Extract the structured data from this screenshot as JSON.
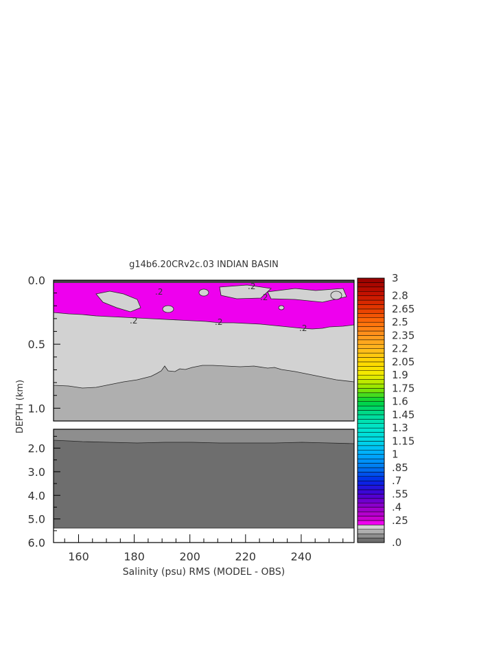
{
  "chart_data": {
    "type": "heatmap",
    "title": "g14b6.20CRv2c.03 INDIAN BASIN",
    "xlabel": "Salinity (psu) RMS (MODEL - OBS)",
    "ylabel": "DEPTH (km)",
    "x_ticks": [
      "160",
      "180",
      "200",
      "220",
      "240"
    ],
    "xlim": [
      151,
      259
    ],
    "upper_panel": {
      "ylim": [
        0.0,
        1.1
      ],
      "y_ticks": [
        "0.0",
        "0.5",
        "1.0"
      ]
    },
    "lower_panel": {
      "ylim": [
        1.2,
        6.0
      ],
      "y_ticks": [
        "2.0",
        "3.0",
        "4.0",
        "5.0",
        "6.0"
      ]
    },
    "contour_labels": [
      ".2",
      ".2",
      ".2",
      ".2",
      ".2",
      ".2"
    ],
    "colorbar": {
      "labels": [
        "3",
        "2.8",
        "2.65",
        "2.5",
        "2.35",
        "2.2",
        "2.05",
        "1.9",
        "1.75",
        "1.6",
        "1.45",
        "1.3",
        "1.15",
        "1",
        ".85",
        ".7",
        ".55",
        ".4",
        ".25",
        ".0"
      ],
      "vmin": 0.0,
      "vmax": 3.0
    },
    "layers": {
      "magenta_band": {
        "value_range": [
          0.2,
          0.3
        ],
        "color": "#ee00ee",
        "depth_range_km": [
          0.0,
          0.35
        ]
      },
      "light_gray": {
        "value_range": [
          0.15,
          0.2
        ],
        "color": "#d2d2d2",
        "depth_range_km": [
          0.3,
          0.8
        ]
      },
      "mid_gray": {
        "value_range": [
          0.1,
          0.15
        ],
        "color": "#afafaf",
        "depth_range_km": [
          0.8,
          1.1
        ]
      },
      "gray_lower": {
        "value_range": [
          0.05,
          0.1
        ],
        "color": "#8e8e8e",
        "depth_range_km": [
          1.2,
          1.75
        ]
      },
      "dark_gray": {
        "value_range": [
          0.0,
          0.05
        ],
        "color": "#6e6e6e",
        "depth_range_km": [
          1.75,
          5.4
        ]
      }
    }
  }
}
